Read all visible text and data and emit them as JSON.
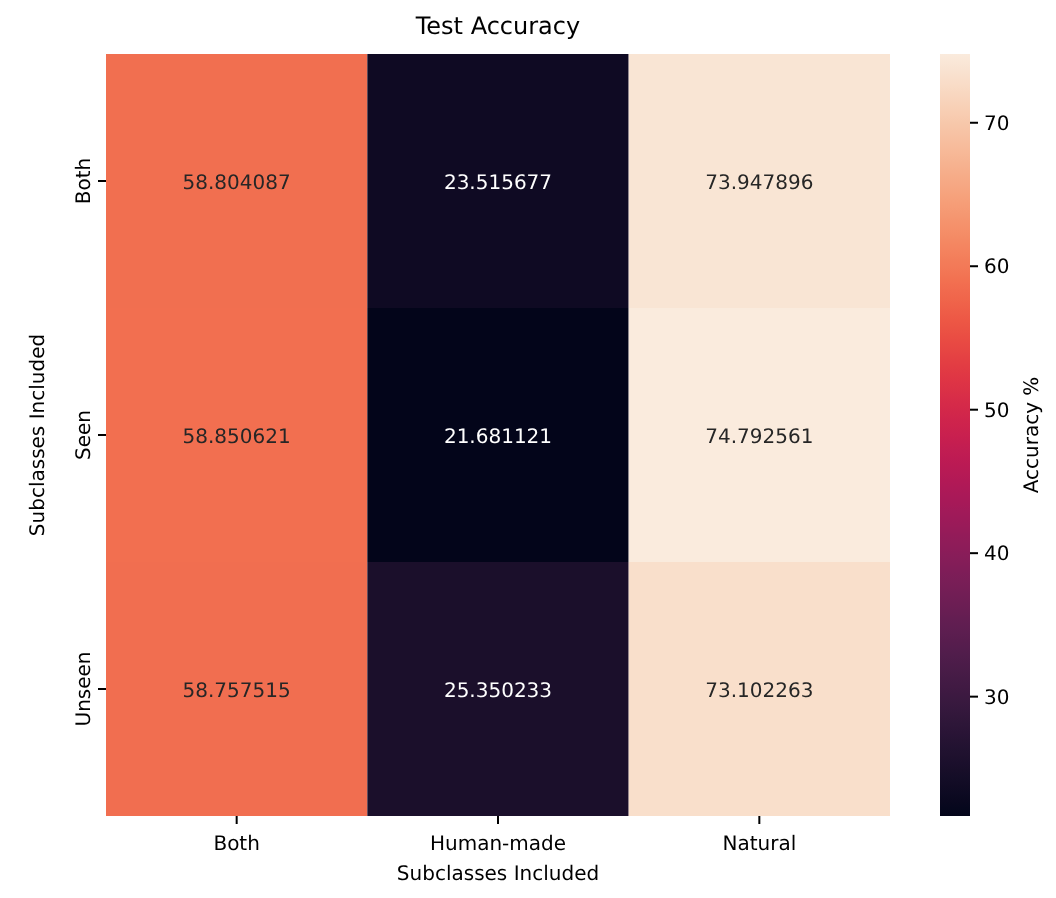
{
  "chart_data": {
    "type": "heatmap",
    "title": "Test Accuracy",
    "xlabel": "Subclasses Included",
    "ylabel": "Subclasses Included",
    "clabel": "Accuracy %",
    "categories": [
      "Both",
      "Human-made",
      "Natural"
    ],
    "y_categories": [
      "Both",
      "Seen",
      "Unseen"
    ],
    "cells": [
      [
        58.804087,
        23.515677,
        73.947896
      ],
      [
        58.850621,
        21.681121,
        74.792561
      ],
      [
        58.757515,
        25.350233,
        73.102263
      ]
    ],
    "data_labels": true,
    "clim": [
      21.681121,
      74.792561
    ],
    "cticks": [
      30,
      40,
      50,
      60,
      70
    ]
  }
}
